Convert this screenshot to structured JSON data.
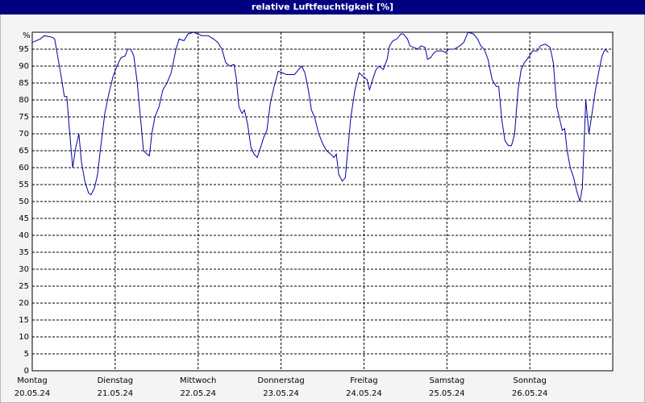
{
  "chart_data": {
    "type": "line",
    "title": "relative Luftfeuchtigkeit [%]",
    "x": [
      0,
      2.3,
      3.5,
      5.8,
      6.5,
      7.0,
      8.2,
      9.3,
      10.0,
      10.7,
      11.7,
      12.6,
      13.5,
      14.2,
      15.2,
      16.3,
      17.0,
      18.0,
      18.9,
      19.8,
      21.0,
      22.2,
      23.4,
      24.5,
      25.7,
      26.9,
      27.6,
      28.5,
      29.4,
      30.4,
      31.3,
      32.2,
      33.2,
      33.9,
      34.6,
      35.5,
      36.7,
      37.8,
      39.0,
      40.2,
      41.6,
      42.5,
      43.9,
      45.1,
      46.7,
      47.9,
      49.0,
      50.9,
      52.5,
      53.7,
      54.9,
      56.0,
      57.2,
      58.4,
      59.1,
      59.8,
      60.7,
      61.4,
      62.3,
      63.3,
      64.2,
      65.1,
      66.1,
      67.0,
      67.9,
      68.9,
      70.0,
      71.2,
      72.4,
      73.6,
      74.7,
      75.9,
      77.1,
      78.0,
      78.9,
      79.9,
      80.8,
      81.7,
      82.9,
      84.1,
      85.2,
      86.4,
      87.3,
      88.0,
      88.7,
      89.7,
      90.6,
      91.3,
      92.2,
      93.4,
      94.6,
      95.7,
      96.9,
      97.6,
      98.5,
      99.5,
      100.4,
      101.6,
      102.7,
      103.4,
      104.4,
      105.5,
      106.7,
      107.4,
      108.6,
      109.3,
      110.4,
      111.6,
      112.5,
      113.7,
      114.4,
      115.3,
      116.3,
      117.2,
      118.6,
      119.6,
      120.5,
      122.1,
      123.8,
      124.9,
      126.1,
      127.7,
      128.9,
      129.8,
      130.8,
      131.9,
      133.1,
      134.3,
      135.0,
      135.9,
      136.8,
      137.8,
      138.7,
      139.6,
      140.6,
      141.5,
      142.4,
      143.6,
      144.8,
      146.2,
      147.1,
      148.5,
      149.9,
      150.8,
      151.8,
      152.7,
      153.4,
      154.1,
      154.8,
      155.7,
      156.7,
      157.6,
      158.5,
      159.2,
      160.2,
      161.1,
      162.0,
      163.0,
      163.9,
      164.9,
      165.8,
      166.7
    ],
    "series": [
      {
        "name": "relative Luftfeuchtigkeit",
        "color": "#0000a0",
        "values": [
          97,
          98,
          99,
          98.5,
          98,
          95,
          88,
          81,
          81,
          72,
          60,
          66,
          70,
          62,
          56,
          52.5,
          52,
          54,
          58,
          66,
          76,
          82,
          87,
          90,
          92.5,
          93,
          95,
          95,
          93,
          85,
          75,
          65,
          64,
          63.5,
          70,
          75,
          78,
          83,
          85,
          88,
          95,
          98,
          97.5,
          99.5,
          100,
          99.5,
          99,
          99,
          98,
          97,
          95,
          91,
          90,
          90.5,
          86,
          78,
          76,
          77,
          73,
          66,
          64,
          63,
          66,
          69,
          71,
          79,
          84,
          88.5,
          88,
          87.5,
          87.5,
          87.5,
          89,
          90,
          88,
          83,
          77,
          75,
          70,
          67,
          65,
          64,
          63,
          64,
          58,
          56,
          57,
          65,
          75,
          83,
          88,
          87,
          86,
          83,
          86,
          89,
          90,
          89,
          92,
          96,
          97.5,
          98,
          99.5,
          99.5,
          98,
          96,
          95.5,
          95,
          96,
          95.5,
          92,
          92.5,
          94,
          94.5,
          94.5,
          94,
          95,
          95,
          96,
          97,
          100,
          99.5,
          98,
          96,
          95,
          92,
          86,
          84,
          84,
          74,
          68,
          66.5,
          66.5,
          70,
          83,
          89,
          91,
          92.5,
          94.5,
          94.5,
          96,
          96.5,
          95.5,
          91,
          78,
          74,
          71,
          71.5,
          65,
          60,
          57,
          53,
          50,
          54,
          80,
          70,
          76,
          83,
          88,
          93,
          95,
          94
        ]
      }
    ],
    "xlim": [
      0,
      168
    ],
    "xticks": [
      {
        "value": 0,
        "label": "Montag",
        "date": "20.05.24"
      },
      {
        "value": 24,
        "label": "Dienstag",
        "date": "21.05.24"
      },
      {
        "value": 48,
        "label": "Mittwoch",
        "date": "22.05.24"
      },
      {
        "value": 72,
        "label": "Donnerstag",
        "date": "23.05.24"
      },
      {
        "value": 96,
        "label": "Freitag",
        "date": "24.05.24"
      },
      {
        "value": 120,
        "label": "Samstag",
        "date": "25.05.24"
      },
      {
        "value": 144,
        "label": "Sonntag",
        "date": "26.05.24"
      }
    ],
    "ylim": [
      0,
      100
    ],
    "yticks": [
      0,
      5,
      10,
      15,
      20,
      25,
      30,
      35,
      40,
      45,
      50,
      55,
      60,
      65,
      70,
      75,
      80,
      85,
      90,
      95,
      {
        "value": 100,
        "label": "%"
      }
    ],
    "grid": true
  }
}
